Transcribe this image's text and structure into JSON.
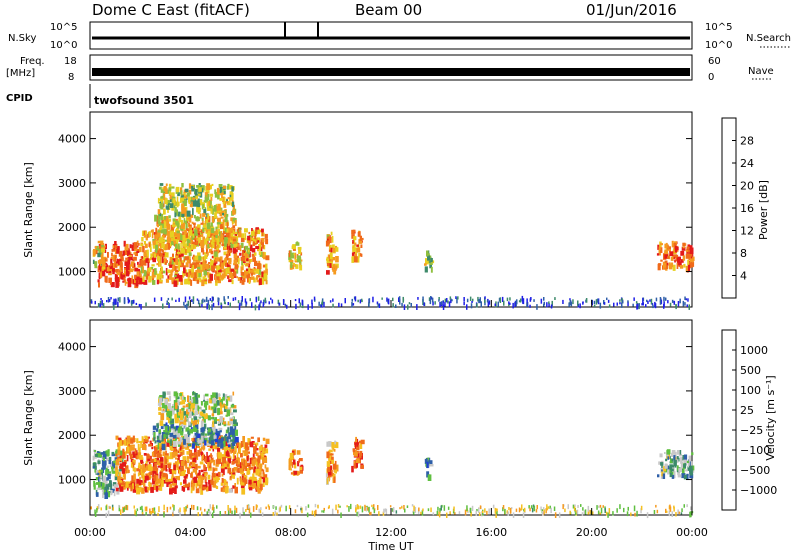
{
  "header": {
    "station": "Dome C East (fitACF)",
    "beam": "Beam 00",
    "date": "01/Jun/2016"
  },
  "top_panels": {
    "nsky_label": "N.Sky",
    "nsky_ticks": [
      "10^5",
      "10^0"
    ],
    "nsearch_label": "N.Search",
    "nsearch_ticks": [
      "10^5",
      "10^0"
    ],
    "freq_label_1": "Freq.",
    "freq_label_2": "[MHz]",
    "freq_ticks": [
      "18",
      "8"
    ],
    "nave_label": "Nave",
    "nave_ticks": [
      "60",
      "0"
    ],
    "cpid_label": "CPID",
    "cpid_value": "twofsound 3501"
  },
  "chart_data": [
    {
      "type": "heatmap",
      "name": "power",
      "ylabel": "Slant Range [km]",
      "yticks": [
        "1000",
        "2000",
        "3000",
        "4000"
      ],
      "ylim": [
        200,
        4600
      ],
      "colorbar_label": "Power [dB]",
      "colorbar_ticks": [
        "4",
        "8",
        "12",
        "16",
        "20",
        "24",
        "28"
      ],
      "colors": [
        "#1f1fe6",
        "#2e5fa8",
        "#3d8a6a",
        "#8fbf3f",
        "#e8d020",
        "#f59a20",
        "#f06a1a",
        "#e31a1a"
      ],
      "echo_regions": [
        {
          "t0": 0.3,
          "t1": 2.0,
          "r0": 750,
          "r1": 1700,
          "level": 0.85
        },
        {
          "t0": 0.1,
          "t1": 0.5,
          "r0": 1100,
          "r1": 1600,
          "level": 0.55
        },
        {
          "t0": 2.0,
          "t1": 7.0,
          "r0": 800,
          "r1": 2000,
          "level": 0.7
        },
        {
          "t0": 2.5,
          "t1": 5.8,
          "r0": 1600,
          "r1": 2300,
          "level": 0.6
        },
        {
          "t0": 2.7,
          "t1": 5.7,
          "r0": 2300,
          "r1": 3000,
          "level": 0.5
        },
        {
          "t0": 7.9,
          "t1": 8.4,
          "r0": 1150,
          "r1": 1700,
          "level": 0.6
        },
        {
          "t0": 9.4,
          "t1": 9.8,
          "r0": 1000,
          "r1": 1900,
          "level": 0.7
        },
        {
          "t0": 10.4,
          "t1": 10.8,
          "r0": 1300,
          "r1": 2000,
          "level": 0.75
        },
        {
          "t0": 13.3,
          "t1": 13.6,
          "r0": 1100,
          "r1": 1500,
          "level": 0.5
        },
        {
          "t0": 22.6,
          "t1": 24.0,
          "r0": 1100,
          "r1": 1700,
          "level": 0.8
        }
      ],
      "ground_band": {
        "t0": 0.0,
        "t1": 24.0,
        "r0": 250,
        "r1": 450,
        "level": 0.15
      }
    },
    {
      "type": "heatmap",
      "name": "velocity",
      "ylabel": "Slant Range [km]",
      "yticks": [
        "1000",
        "2000",
        "3000",
        "4000"
      ],
      "ylim": [
        200,
        4600
      ],
      "colorbar_label": "Velocity [m s⁻¹]",
      "colorbar_ticks": [
        "1000",
        "500",
        "100",
        "25",
        "−25",
        "−100",
        "−500",
        "−1000"
      ],
      "colors": [
        "#2040d0",
        "#2e5fa8",
        "#3d8a6a",
        "#5fbf3f",
        "#c8c8c8",
        "#f5c020",
        "#f59a20",
        "#f06a1a",
        "#e31a1a"
      ],
      "echo_regions": [
        {
          "t0": 0.1,
          "t1": 1.2,
          "r0": 700,
          "r1": 1700,
          "level": 0.35
        },
        {
          "t0": 1.0,
          "t1": 7.0,
          "r0": 800,
          "r1": 2000,
          "level": 0.78
        },
        {
          "t0": 2.5,
          "t1": 5.8,
          "r0": 1800,
          "r1": 2300,
          "level": 0.3
        },
        {
          "t0": 2.7,
          "t1": 5.7,
          "r0": 2300,
          "r1": 3000,
          "level": 0.5
        },
        {
          "t0": 7.9,
          "t1": 8.4,
          "r0": 1150,
          "r1": 1700,
          "level": 0.75
        },
        {
          "t0": 9.4,
          "t1": 9.8,
          "r0": 1000,
          "r1": 1900,
          "level": 0.72
        },
        {
          "t0": 10.4,
          "t1": 10.8,
          "r0": 1300,
          "r1": 2000,
          "level": 0.85
        },
        {
          "t0": 13.3,
          "t1": 13.6,
          "r0": 1100,
          "r1": 1500,
          "level": 0.3
        },
        {
          "t0": 22.6,
          "t1": 24.0,
          "r0": 1100,
          "r1": 1700,
          "level": 0.35
        }
      ],
      "ground_band": {
        "t0": 0.0,
        "t1": 24.0,
        "r0": 250,
        "r1": 450,
        "level": 0.55
      }
    }
  ],
  "x_axis": {
    "xlabel": "Time UT",
    "xticks": [
      "00:00",
      "04:00",
      "08:00",
      "12:00",
      "16:00",
      "20:00",
      "00:00"
    ],
    "xlim": [
      0,
      24
    ]
  }
}
